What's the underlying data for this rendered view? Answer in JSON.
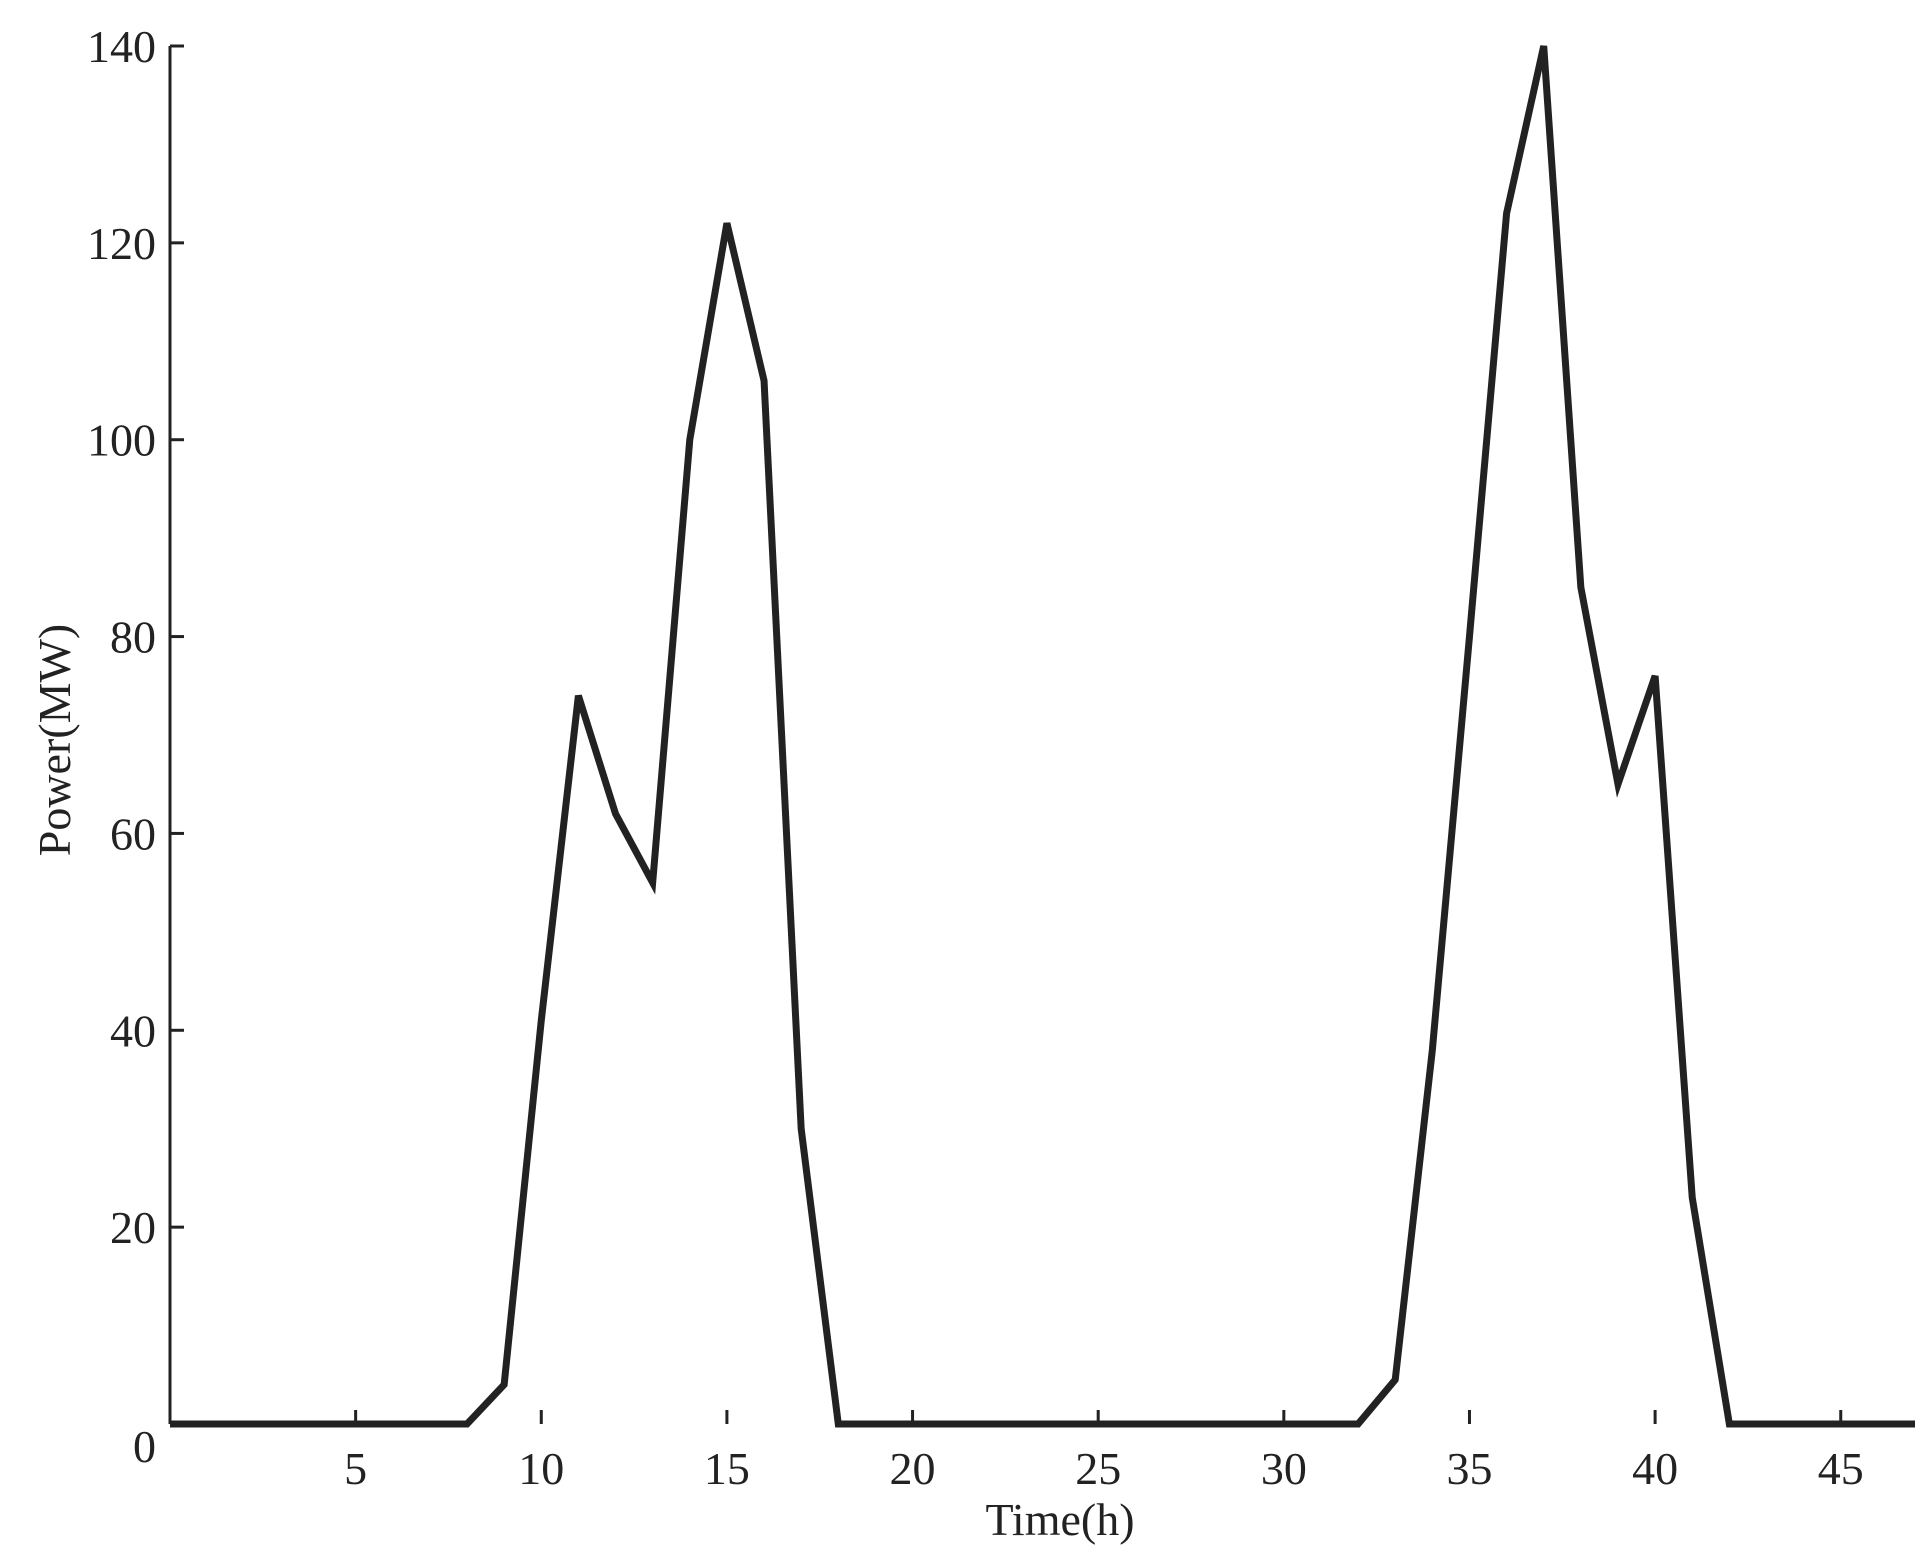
{
  "chart_data": {
    "type": "line",
    "x_label": "Time(h)",
    "y_label": "Power(MW)",
    "x": [
      0,
      1,
      2,
      3,
      4,
      5,
      6,
      7,
      8,
      9,
      10,
      11,
      12,
      13,
      14,
      15,
      16,
      17,
      18,
      19,
      20,
      21,
      22,
      23,
      24,
      25,
      26,
      27,
      28,
      29,
      30,
      31,
      32,
      33,
      34,
      35,
      36,
      37,
      38,
      39,
      40,
      41,
      42,
      43,
      44,
      45,
      46,
      47
    ],
    "series": [
      {
        "color": "#222222",
        "values": [
          0,
          0,
          0,
          0,
          0,
          0,
          0,
          0,
          0,
          4,
          41,
          74,
          62,
          55,
          100,
          122,
          106,
          30,
          0,
          0,
          0,
          0,
          0,
          0,
          0,
          0,
          0,
          0,
          0,
          0,
          0,
          0,
          0,
          4.5,
          38,
          80,
          123,
          140,
          85,
          65,
          76,
          23,
          0,
          0,
          0,
          0,
          0,
          0
        ]
      }
    ],
    "xlim": [
      0,
      47
    ],
    "xticks": [
      5,
      10,
      15,
      20,
      25,
      30,
      35,
      40,
      45
    ],
    "ylim": [
      0,
      140
    ],
    "yticks": [
      0,
      20,
      40,
      60,
      80,
      100,
      120,
      140
    ]
  }
}
